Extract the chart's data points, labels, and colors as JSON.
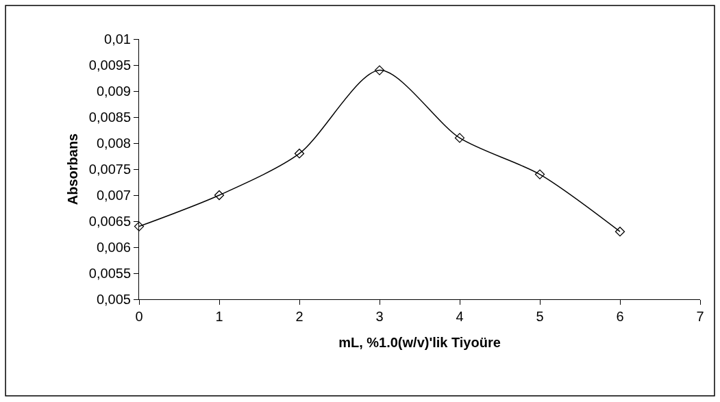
{
  "chart_data": {
    "type": "line",
    "xlabel": "mL, %1.0(w/v)'lik Tiyoüre",
    "ylabel": "Absorbans",
    "x": [
      0,
      1,
      2,
      3,
      4,
      5,
      6
    ],
    "series": [
      {
        "color": "#000000",
        "values": [
          0.0064,
          0.007,
          0.0078,
          0.0094,
          0.0081,
          0.0074,
          0.0063
        ]
      }
    ],
    "xlim": [
      0,
      7
    ],
    "xticks": [
      0,
      1,
      2,
      3,
      4,
      5,
      6,
      7
    ],
    "ylim": [
      0.005,
      0.01
    ],
    "yticks": [
      {
        "value": 0.005,
        "label": "0,005"
      },
      {
        "value": 0.0055,
        "label": "0,0055"
      },
      {
        "value": 0.006,
        "label": "0,006"
      },
      {
        "value": 0.0065,
        "label": "0,0065"
      },
      {
        "value": 0.007,
        "label": "0,007"
      },
      {
        "value": 0.0075,
        "label": "0,0075"
      },
      {
        "value": 0.008,
        "label": "0,008"
      },
      {
        "value": 0.0085,
        "label": "0,0085"
      },
      {
        "value": 0.009,
        "label": "0,009"
      },
      {
        "value": 0.0095,
        "label": "0,0095"
      },
      {
        "value": 0.01,
        "label": "0,01"
      }
    ],
    "marker": "diamond",
    "legend": false
  }
}
